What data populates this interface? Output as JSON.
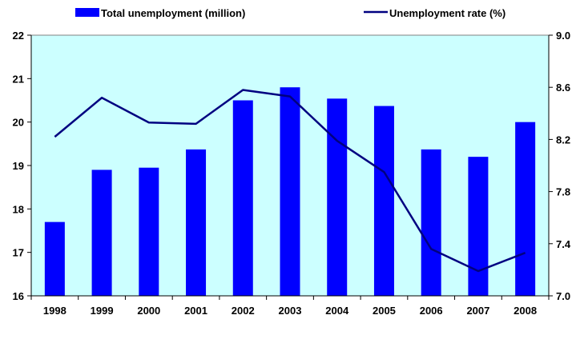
{
  "chart_data": {
    "type": "bar",
    "categories": [
      "1998",
      "1999",
      "2000",
      "2001",
      "2002",
      "2003",
      "2004",
      "2005",
      "2006",
      "2007",
      "2008"
    ],
    "series": [
      {
        "name": "Total unemployment (million)",
        "type": "bar",
        "axis": "left",
        "color": "#0000ff",
        "values": [
          17.7,
          18.9,
          18.95,
          19.37,
          20.5,
          20.8,
          20.54,
          20.37,
          19.37,
          19.2,
          20.0
        ]
      },
      {
        "name": "Unemployment rate (%)",
        "type": "line",
        "axis": "right",
        "color": "#000080",
        "values": [
          8.22,
          8.52,
          8.33,
          8.32,
          8.58,
          8.53,
          8.19,
          7.95,
          7.36,
          7.19,
          7.33
        ]
      }
    ],
    "y_left": {
      "ylim": [
        16,
        22
      ],
      "ticks": [
        "16",
        "17",
        "18",
        "19",
        "20",
        "21",
        "22"
      ]
    },
    "y_right": {
      "ylim": [
        7.0,
        9.0
      ],
      "ticks": [
        "7.0",
        "7.4",
        "7.8",
        "8.2",
        "8.6",
        "9.0"
      ]
    },
    "title": "",
    "xlabel": "",
    "ylabel": "",
    "grid": false,
    "legend_position": "top",
    "plot_background": "#ccffff"
  }
}
